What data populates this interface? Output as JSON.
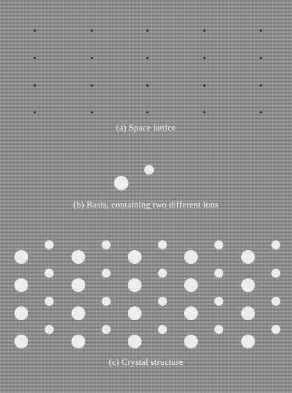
{
  "figure": {
    "panel_a": {
      "caption": "(a) Space lattice",
      "point_color": "#1a1a1a"
    },
    "panel_b": {
      "caption": "(b) Basis, containing two different ions",
      "ions": [
        {
          "kind": "large-ion"
        },
        {
          "kind": "small-ion"
        }
      ]
    },
    "panel_c": {
      "caption": "(c) Crystal structure",
      "ion_color": "#ececec"
    }
  }
}
